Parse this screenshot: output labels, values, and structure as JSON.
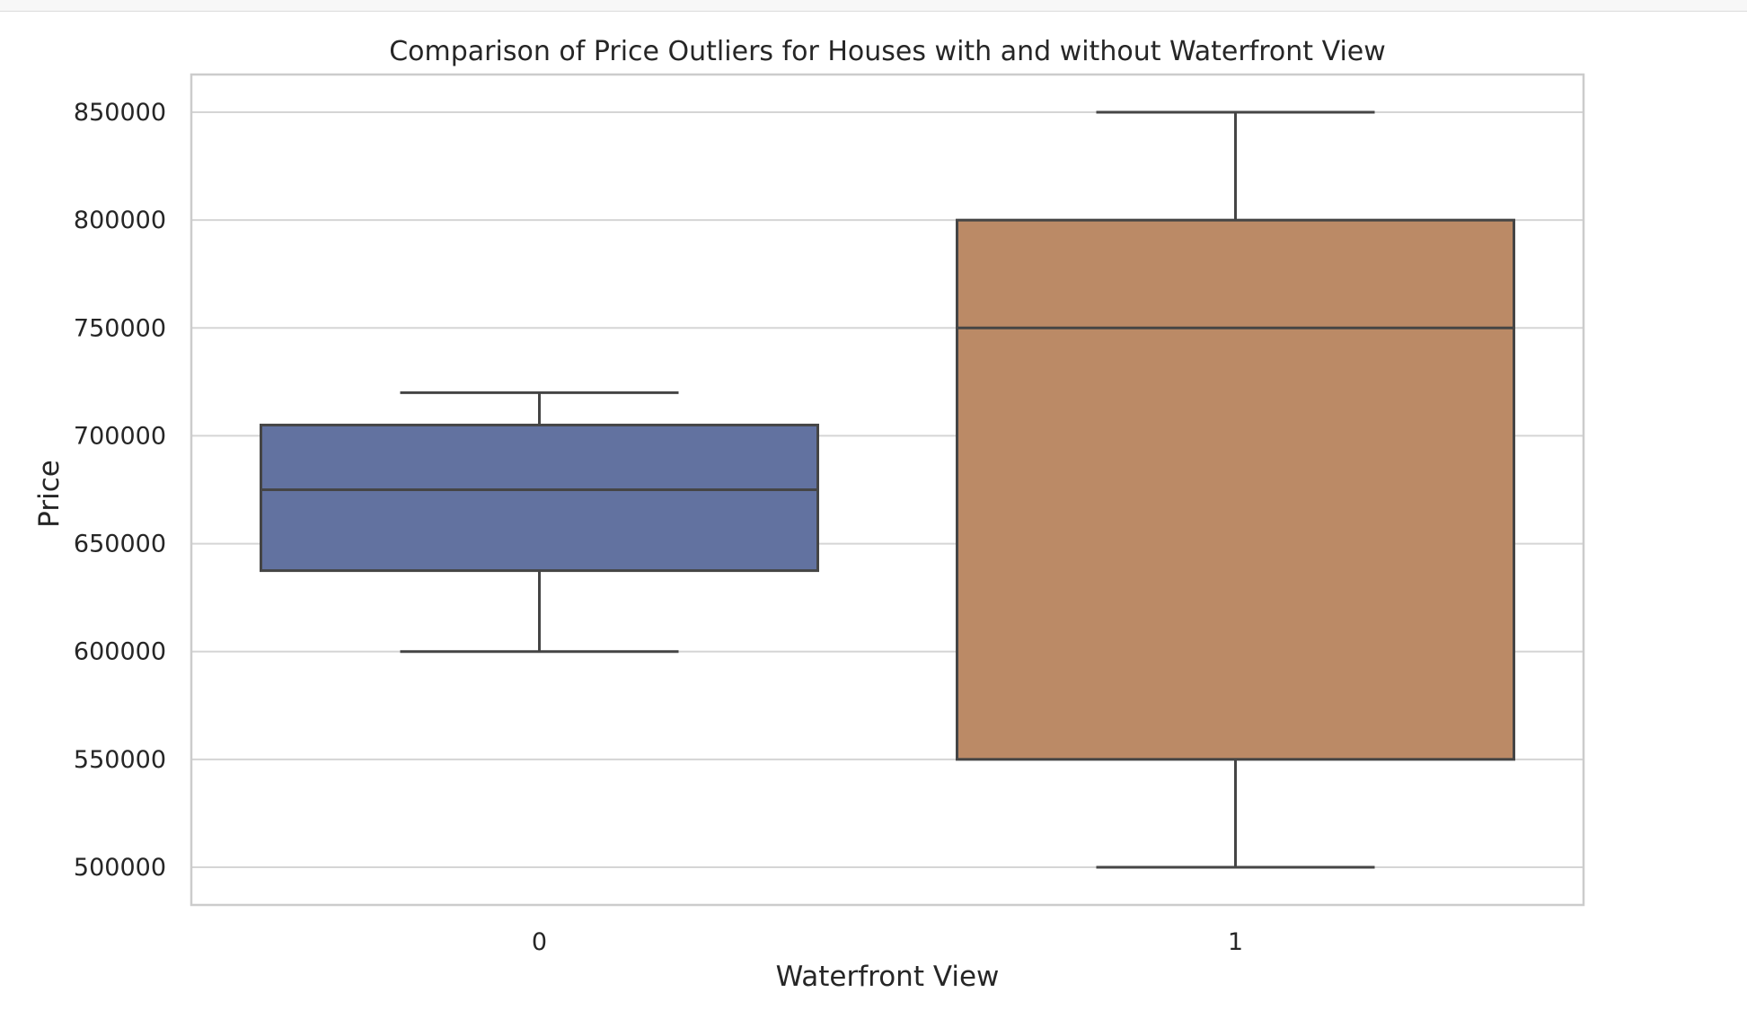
{
  "chart_data": {
    "type": "box",
    "title": "Comparison of Price Outliers for Houses with and without Waterfront View",
    "xlabel": "Waterfront View",
    "ylabel": "Price",
    "categories": [
      "0",
      "1"
    ],
    "ylim": [
      482500,
      867500
    ],
    "yticks": [
      500000,
      550000,
      600000,
      650000,
      700000,
      750000,
      800000,
      850000
    ],
    "ytick_labels": [
      "500000",
      "550000",
      "600000",
      "650000",
      "700000",
      "750000",
      "800000",
      "850000"
    ],
    "grid": true,
    "boxes": [
      {
        "category": "0",
        "whisker_low": 600000,
        "q1": 637500,
        "median": 675000,
        "q3": 705000,
        "whisker_high": 720000,
        "color": "#6272a0"
      },
      {
        "category": "1",
        "whisker_low": 500000,
        "q1": 550000,
        "median": 750000,
        "q3": 800000,
        "whisker_high": 850000,
        "color": "#bb8a66"
      }
    ],
    "colors": {
      "grid": "#d5d5d5",
      "frame": "#cccccc",
      "edge": "#454545"
    }
  }
}
